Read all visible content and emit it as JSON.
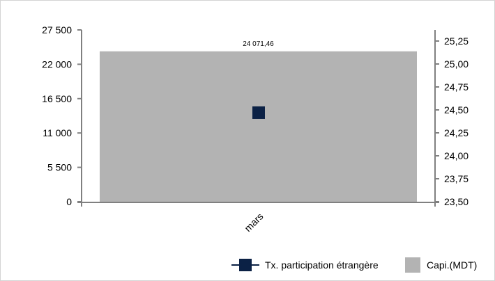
{
  "chart_data": {
    "type": "bar",
    "categories": [
      "mars"
    ],
    "series": [
      {
        "name": "Capi.(MDT)",
        "kind": "bar",
        "axis": "left",
        "values": [
          24071.46
        ],
        "data_labels": [
          "24 071,46"
        ],
        "color": "#b3b3b3"
      },
      {
        "name": "Tx. participation étrangère",
        "kind": "line-marker",
        "axis": "right",
        "values": [
          24.47
        ],
        "color": "#0b2145"
      }
    ],
    "left_axis": {
      "min": 0,
      "max": 27500,
      "ticks": [
        0,
        5500,
        11000,
        16500,
        22000,
        27500
      ],
      "tick_labels": [
        "0",
        "5 500",
        "11 000",
        "16 500",
        "22 000",
        "27 500"
      ]
    },
    "right_axis": {
      "min": 23.5,
      "max": 25.25,
      "ticks": [
        23.5,
        23.75,
        24.0,
        24.25,
        24.5,
        24.75,
        25.0,
        25.25
      ],
      "tick_labels": [
        "23,50",
        "23,75",
        "24,00",
        "24,25",
        "24,50",
        "24,75",
        "25,00",
        "25,25"
      ]
    },
    "grid": false,
    "legend_position": "bottom-right",
    "legend": [
      "Tx. participation étrangère",
      "Capi.(MDT)"
    ]
  }
}
